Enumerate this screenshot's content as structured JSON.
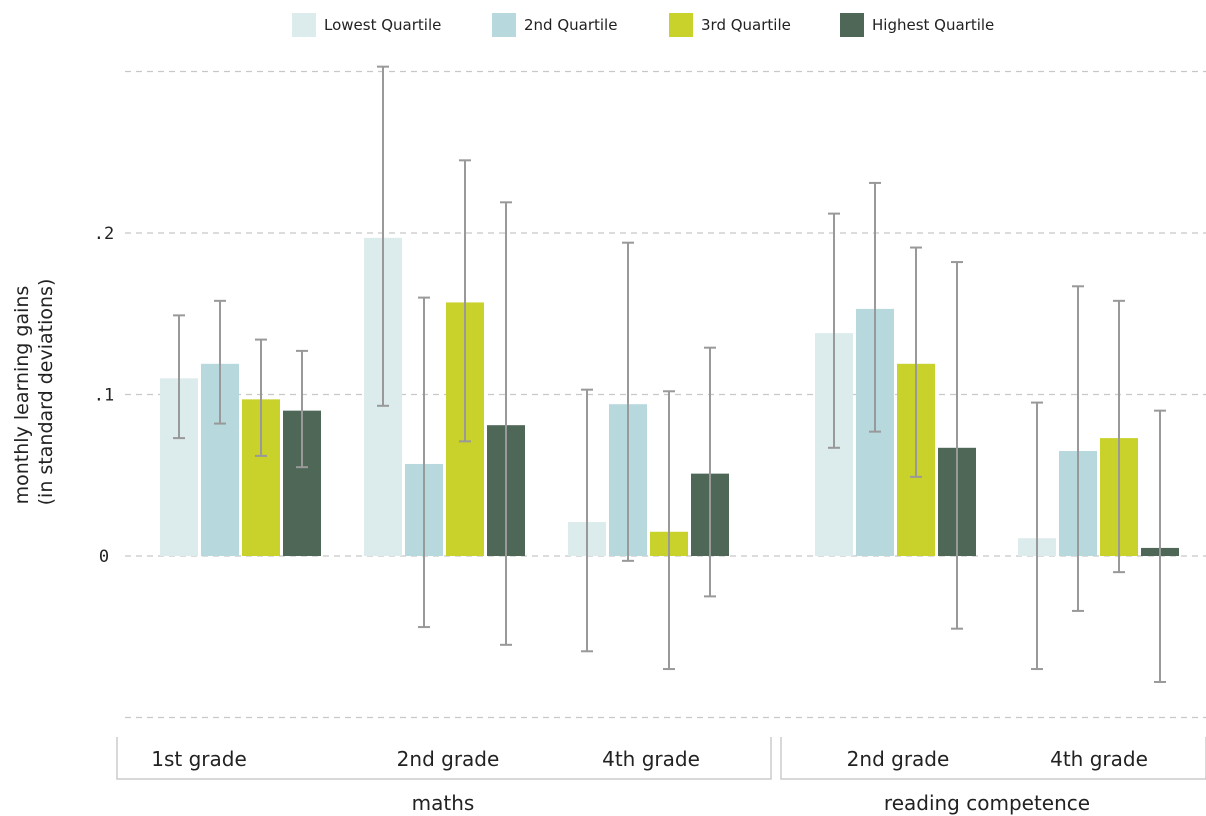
{
  "chart_data": {
    "type": "bar",
    "ylabel_line1": "monthly learning gains",
    "ylabel_line2": "(in standard deviations)",
    "ylim": [
      -0.1,
      0.3
    ],
    "yticks": [
      {
        "value": 0,
        "label": "0"
      },
      {
        "value": 0.1,
        "label": ".1"
      },
      {
        "value": 0.2,
        "label": ".2"
      }
    ],
    "gridlines": [
      -0.1,
      0,
      0.1,
      0.2,
      0.3
    ],
    "legend_position": "top",
    "series": [
      {
        "name": "Lowest Quartile",
        "color": "#dcebeb"
      },
      {
        "name": "2nd Quartile",
        "color": "#b7d9de"
      },
      {
        "name": "3rd Quartile",
        "color": "#c8d22a"
      },
      {
        "name": "Highest Quartile",
        "color": "#4e6757"
      }
    ],
    "subjects": [
      {
        "label": "maths",
        "groups": [
          {
            "label": "1st grade",
            "values": [
              0.11,
              0.119,
              0.097,
              0.09
            ],
            "ci_low": [
              0.073,
              0.082,
              0.062,
              0.055
            ],
            "ci_high": [
              0.149,
              0.158,
              0.134,
              0.127
            ]
          },
          {
            "label": "2nd grade",
            "values": [
              0.197,
              0.057,
              0.157,
              0.081
            ],
            "ci_low": [
              0.093,
              -0.044,
              0.071,
              -0.055
            ],
            "ci_high": [
              0.303,
              0.16,
              0.245,
              0.219
            ]
          },
          {
            "label": "4th grade",
            "values": [
              0.021,
              0.094,
              0.015,
              0.051
            ],
            "ci_low": [
              -0.059,
              -0.003,
              -0.07,
              -0.025
            ],
            "ci_high": [
              0.103,
              0.194,
              0.102,
              0.129
            ]
          }
        ]
      },
      {
        "label": "reading competence",
        "groups": [
          {
            "label": "2nd grade",
            "values": [
              0.138,
              0.153,
              0.119,
              0.067
            ],
            "ci_low": [
              0.067,
              0.077,
              0.049,
              -0.045
            ],
            "ci_high": [
              0.212,
              0.231,
              0.191,
              0.182
            ]
          },
          {
            "label": "4th grade",
            "values": [
              0.011,
              0.065,
              0.073,
              0.005
            ],
            "ci_low": [
              -0.07,
              -0.034,
              -0.01,
              -0.078
            ],
            "ci_high": [
              0.095,
              0.167,
              0.158,
              0.09
            ]
          }
        ]
      }
    ]
  }
}
